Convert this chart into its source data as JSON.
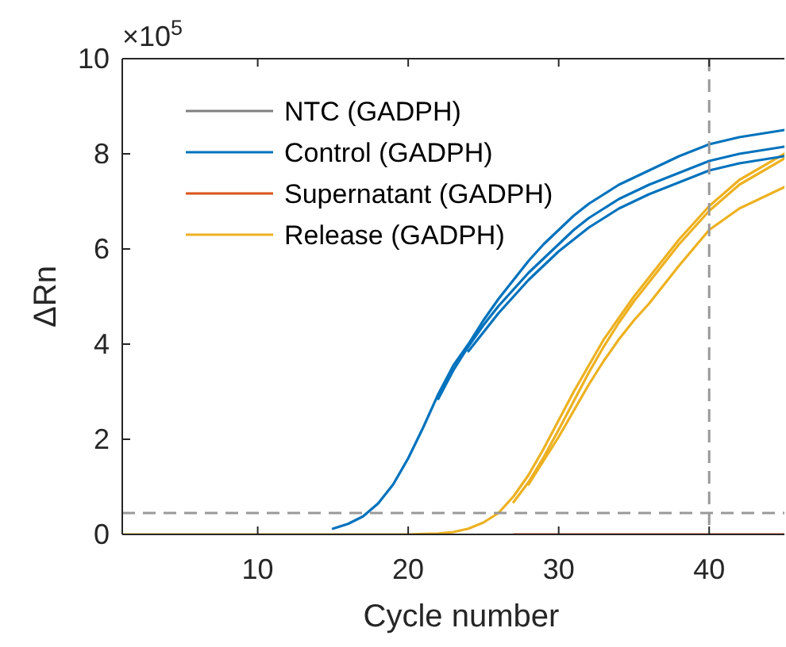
{
  "chart_data": {
    "type": "line",
    "xlabel": "Cycle number",
    "ylabel": "ΔRn",
    "annotations": [
      "×10$^{5}$"
    ],
    "x": [
      1,
      5,
      10,
      12,
      14,
      15,
      16,
      17,
      18,
      19,
      20,
      21,
      22,
      23,
      24,
      25,
      26,
      27,
      28,
      29,
      30,
      31,
      32,
      33,
      34,
      35,
      36,
      38,
      40,
      42,
      45
    ],
    "series": [
      {
        "name": "NTC (GADPH)",
        "color": "#808080",
        "values": [
          null,
          null,
          null,
          null,
          null,
          null,
          null,
          null,
          null,
          null,
          null,
          null,
          null,
          null,
          null,
          null,
          null,
          null,
          null,
          null,
          null,
          null,
          null,
          null,
          null,
          null,
          null,
          null,
          null,
          null,
          null
        ]
      },
      {
        "name": "Control (GADPH)",
        "color": "#0072bd",
        "x": [
          15,
          16,
          17,
          18,
          19,
          20,
          21,
          22,
          23,
          24,
          25,
          26,
          27,
          28,
          29,
          30,
          31,
          32,
          33,
          34,
          35,
          36,
          38,
          40,
          42,
          45
        ],
        "values": [
          0.12,
          0.22,
          0.38,
          0.65,
          1.05,
          1.6,
          2.25,
          2.95,
          3.55,
          4.0,
          4.5,
          4.95,
          5.35,
          5.75,
          6.1,
          6.4,
          6.7,
          6.95,
          7.15,
          7.35,
          7.5,
          7.65,
          7.95,
          8.2,
          8.35,
          8.5
        ]
      },
      {
        "name": "Supernatant (GADPH)",
        "color": "#d95319",
        "x": [
          27,
          45
        ],
        "values": [
          0,
          0
        ]
      },
      {
        "name": "Release (GADPH)",
        "color": "#edb120",
        "values": [
          0,
          0,
          0,
          0,
          0,
          0,
          0,
          0,
          0,
          0,
          0,
          0.01,
          0.02,
          0.05,
          0.12,
          0.25,
          0.45,
          0.8,
          1.25,
          1.8,
          2.4,
          3.0,
          3.55,
          4.1,
          4.55,
          5.0,
          5.4,
          6.2,
          6.9,
          7.45,
          8.0
        ]
      },
      {
        "color": "#0072bd",
        "x": [
          22,
          23,
          24,
          25,
          26,
          27,
          28,
          29,
          30,
          31,
          32,
          33,
          34,
          35,
          36,
          38,
          40,
          42,
          45
        ],
        "values": [
          2.85,
          3.45,
          3.95,
          4.4,
          4.8,
          5.15,
          5.5,
          5.8,
          6.1,
          6.4,
          6.65,
          6.85,
          7.05,
          7.2,
          7.35,
          7.6,
          7.85,
          8.0,
          8.15
        ]
      },
      {
        "color": "#0072bd",
        "x": [
          24,
          25,
          26,
          27,
          28,
          29,
          30,
          31,
          32,
          33,
          34,
          35,
          36,
          38,
          40,
          42,
          45
        ],
        "values": [
          3.85,
          4.25,
          4.65,
          5.0,
          5.35,
          5.65,
          5.95,
          6.2,
          6.45,
          6.65,
          6.85,
          7.0,
          7.15,
          7.4,
          7.65,
          7.8,
          7.95
        ]
      },
      {
        "color": "#edb120",
        "x": [
          27,
          28,
          29,
          30,
          31,
          32,
          33,
          34,
          35,
          36,
          38,
          40,
          42,
          45
        ],
        "values": [
          0.68,
          1.1,
          1.62,
          2.2,
          2.8,
          3.4,
          3.95,
          4.45,
          4.9,
          5.3,
          6.1,
          6.8,
          7.35,
          7.9
        ]
      },
      {
        "color": "#edb120",
        "x": [
          28,
          29,
          30,
          31,
          32,
          33,
          34,
          35,
          36,
          38,
          40,
          42,
          45
        ],
        "values": [
          1.05,
          1.55,
          2.05,
          2.6,
          3.15,
          3.65,
          4.1,
          4.5,
          4.85,
          5.65,
          6.4,
          6.85,
          7.3
        ]
      }
    ],
    "xlim": [
      1,
      45
    ],
    "xticks": [
      10,
      20,
      30,
      40
    ],
    "ylim": [
      0,
      10
    ],
    "yticks": [
      0,
      2,
      4,
      6,
      8,
      10
    ],
    "ref_lines": [
      {
        "axis": "y",
        "value": 0.45,
        "color": "#999999",
        "line_style": "dashed"
      },
      {
        "axis": "x",
        "value": 40,
        "color": "#999999",
        "line_style": "dashed"
      }
    ],
    "legend": "top left",
    "grid": false,
    "marker": "none",
    "line_style": "solid"
  }
}
